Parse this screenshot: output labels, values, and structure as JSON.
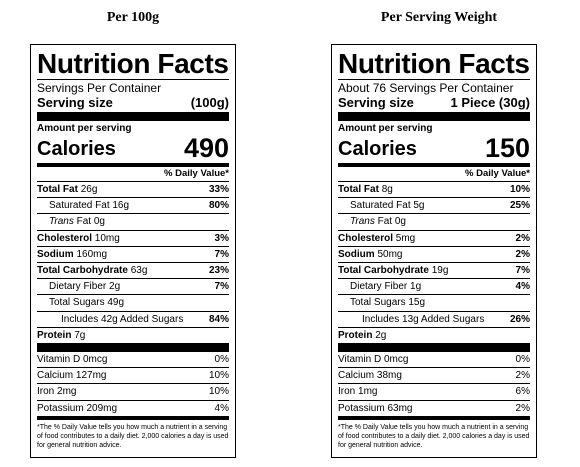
{
  "headings": {
    "left": "Per 100g",
    "right": "Per Serving Weight"
  },
  "labels": [
    {
      "title": "Nutrition Facts",
      "servings": "Servings Per Container",
      "serving_size_label": "Serving size",
      "serving_size_value": "(100g)",
      "amount_label": "Amount per serving",
      "calories_label": "Calories",
      "calories_value": "490",
      "dv_header": "% Daily Value*",
      "nutrients": [
        {
          "label": "Total Fat",
          "amount": " 26g",
          "dv": "33%"
        },
        {
          "label": "Saturated Fat",
          "amount": " 16g",
          "dv": "80%"
        },
        {
          "label": "Trans",
          "amount": " Fat 0g",
          "dv": ""
        },
        {
          "label": "Cholesterol",
          "amount": " 10mg",
          "dv": "3%"
        },
        {
          "label": "Sodium",
          "amount": " 160mg",
          "dv": "7%"
        },
        {
          "label": "Total Carbohydrate",
          "amount": " 63g",
          "dv": "23%"
        },
        {
          "label": "Dietary Fiber",
          "amount": " 2g",
          "dv": "7%"
        },
        {
          "label": "Total Sugars",
          "amount": " 49g",
          "dv": ""
        },
        {
          "label": "Includes 42g Added Sugars",
          "amount": "",
          "dv": "84%"
        },
        {
          "label": "Protein",
          "amount": " 7g",
          "dv": ""
        }
      ],
      "vitamins": [
        {
          "label": "Vitamin D 0mcg",
          "dv": "0%"
        },
        {
          "label": "Calcium 127mg",
          "dv": "10%"
        },
        {
          "label": "Iron 2mg",
          "dv": "10%"
        },
        {
          "label": "Potassium 209mg",
          "dv": "4%"
        }
      ],
      "footnote": "*The % Daily Value tells you how much a nutrient in a serving of food contributes to a daily diet. 2,000 calories a day is used for general nutrition advice."
    },
    {
      "title": "Nutrition Facts",
      "servings": "About 76 Servings Per Container",
      "serving_size_label": "Serving size",
      "serving_size_value": "1 Piece (30g)",
      "amount_label": "Amount per serving",
      "calories_label": "Calories",
      "calories_value": "150",
      "dv_header": "% Daily Value*",
      "nutrients": [
        {
          "label": "Total Fat",
          "amount": " 8g",
          "dv": "10%"
        },
        {
          "label": "Saturated Fat",
          "amount": " 5g",
          "dv": "25%"
        },
        {
          "label": "Trans",
          "amount": " Fat 0g",
          "dv": ""
        },
        {
          "label": "Cholesterol",
          "amount": " 5mg",
          "dv": "2%"
        },
        {
          "label": "Sodium",
          "amount": " 50mg",
          "dv": "2%"
        },
        {
          "label": "Total Carbohydrate",
          "amount": " 19g",
          "dv": "7%"
        },
        {
          "label": "Dietary Fiber",
          "amount": " 1g",
          "dv": "4%"
        },
        {
          "label": "Total Sugars",
          "amount": " 15g",
          "dv": ""
        },
        {
          "label": "Includes 13g Added Sugars",
          "amount": "",
          "dv": "26%"
        },
        {
          "label": "Protein",
          "amount": " 2g",
          "dv": ""
        }
      ],
      "vitamins": [
        {
          "label": "Vitamin D 0mcg",
          "dv": "0%"
        },
        {
          "label": "Calcium 38mg",
          "dv": "2%"
        },
        {
          "label": "Iron 1mg",
          "dv": "6%"
        },
        {
          "label": "Potassium 63mg",
          "dv": "2%"
        }
      ],
      "footnote": "*The % Daily Value tells you how much a nutrient in a serving of food contributes to a daily diet. 2,000 calories a day is used for general nutrition advice."
    }
  ]
}
